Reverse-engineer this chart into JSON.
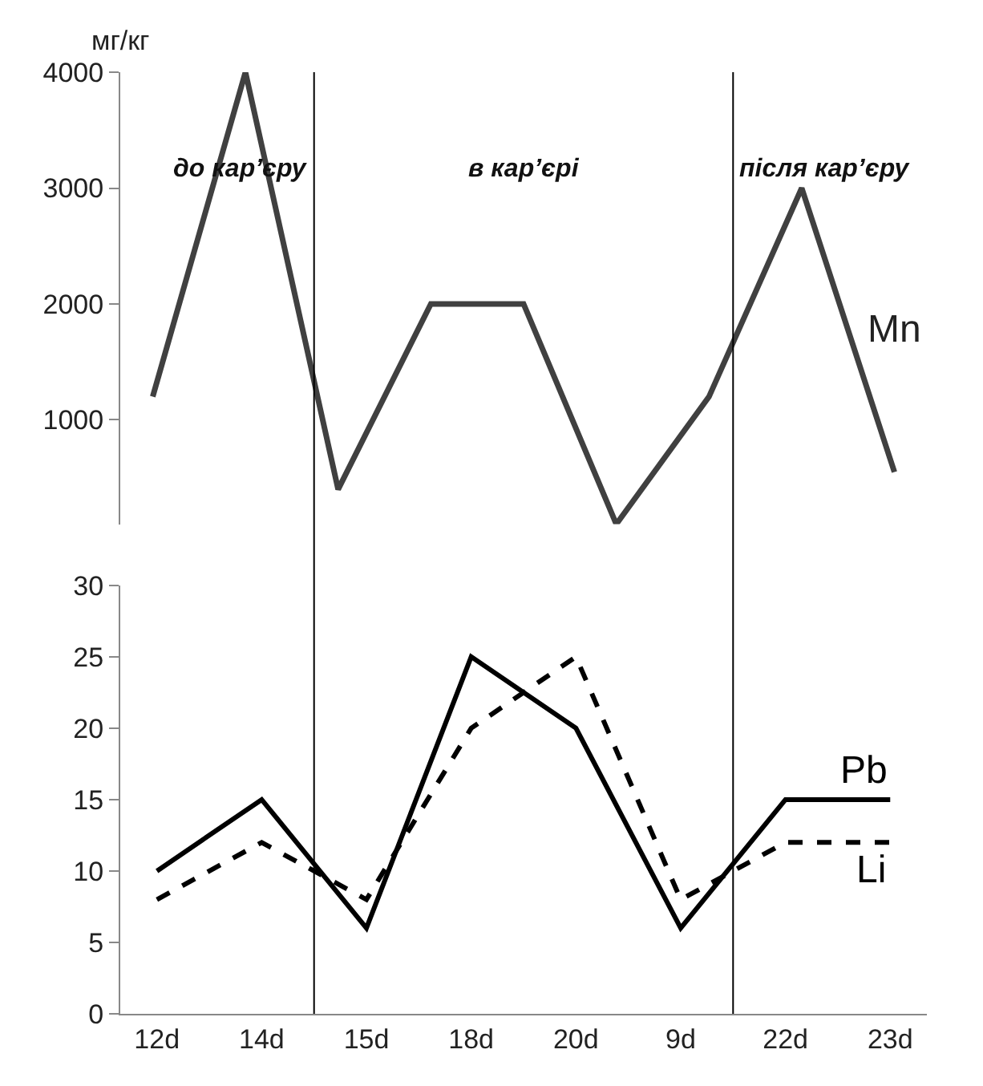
{
  "chart_data": [
    {
      "type": "line",
      "ylabel": "мг/кг",
      "categories": [
        null,
        null,
        null,
        null,
        null,
        null,
        null,
        null,
        null
      ],
      "series": [
        {
          "name": "Mn",
          "color": "#404040",
          "values": [
            1200,
            4000,
            400,
            2000,
            2000,
            100,
            1200,
            3000,
            550
          ]
        }
      ],
      "ylim": [
        100,
        4000
      ],
      "yticks": [
        1000,
        2000,
        3000,
        4000
      ],
      "tick_labels": "y",
      "marker": "none",
      "annotations": [
        "до кар’єру",
        "в кар’єрі",
        "після кар’єру"
      ]
    },
    {
      "type": "line",
      "categories": [
        "12d",
        "14d",
        "15d",
        "18d",
        "20d",
        "9d",
        "22d",
        "23d"
      ],
      "series": [
        {
          "name": "Pb",
          "color": "#000000",
          "line_style": "solid",
          "values": [
            10,
            15,
            6,
            25,
            20,
            6,
            15,
            15
          ]
        },
        {
          "name": "Li",
          "color": "#000000",
          "line_style": "dashed",
          "values": [
            8,
            12,
            8,
            20,
            25,
            8,
            12,
            12
          ]
        }
      ],
      "ylim": [
        0,
        30
      ],
      "yticks": [
        0,
        5,
        10,
        15,
        20,
        25,
        30
      ],
      "marker": "none"
    }
  ]
}
